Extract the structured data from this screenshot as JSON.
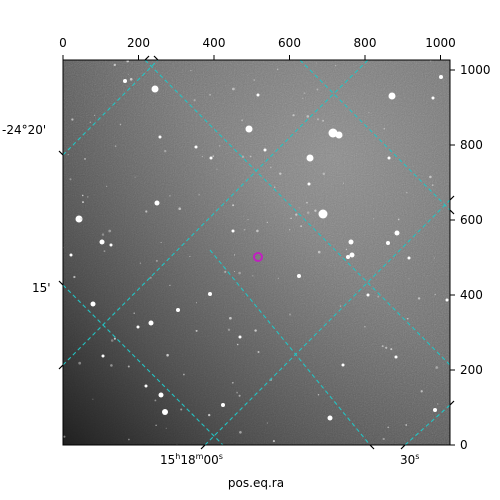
{
  "image": {
    "description_colors": {
      "sky_dark": "#2a2a2a",
      "sky_mid": "#6e6e6e",
      "sky_light": "#8a8a8a",
      "grid": "#22c4c4",
      "target": "#c020c0"
    }
  },
  "pixel_axes": {
    "top_ticks": [
      "0",
      "200",
      "400",
      "600",
      "800",
      "1000"
    ],
    "right_ticks": [
      "0",
      "200",
      "400",
      "600",
      "800",
      "1000"
    ]
  },
  "world_axes": {
    "dec_labels": [
      "-24°20'",
      "15'"
    ],
    "ra_labels": {
      "main": "15",
      "h": "h",
      "main2": "18",
      "m": "m",
      "sec": "00",
      "s": "s"
    },
    "ra_label_2": {
      "val": "30",
      "s": "s"
    },
    "xlabel": "pos.eq.ra"
  }
}
